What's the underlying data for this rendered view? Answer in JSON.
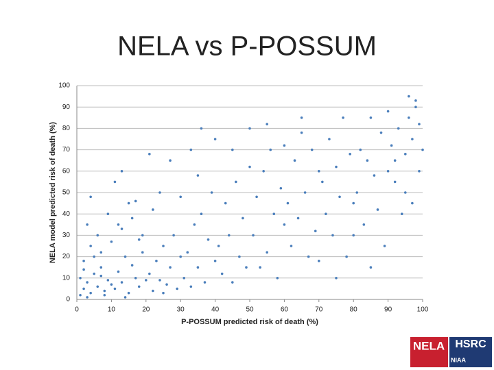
{
  "chart_data": {
    "type": "scatter",
    "title": "NELA vs P-POSSUM",
    "xlabel": "P-POSSUM predicted risk of death (%)",
    "ylabel": "NELA model predicted risk of death (%)",
    "color": "#4a7ebb",
    "grid": true,
    "xlim": [
      0,
      100
    ],
    "ylim": [
      0,
      100
    ],
    "xticks": [
      0,
      10,
      20,
      30,
      40,
      50,
      60,
      70,
      80,
      90,
      100
    ],
    "yticks": [
      0,
      10,
      20,
      30,
      40,
      50,
      60,
      70,
      80,
      90,
      100
    ],
    "x": [
      1,
      2,
      3,
      4,
      5,
      6,
      7,
      8,
      9,
      10,
      2,
      3,
      5,
      7,
      4,
      11,
      12,
      13,
      14,
      15,
      16,
      17,
      18,
      19,
      20,
      6,
      8,
      10,
      12,
      14,
      21,
      22,
      23,
      24,
      25,
      26,
      27,
      28,
      29,
      30,
      3,
      9,
      15,
      18,
      1,
      31,
      32,
      33,
      34,
      35,
      36,
      37,
      38,
      39,
      40,
      4,
      11,
      16,
      22,
      27,
      41,
      42,
      43,
      44,
      45,
      46,
      47,
      48,
      49,
      50,
      13,
      19,
      24,
      33,
      36,
      51,
      52,
      53,
      54,
      55,
      56,
      57,
      58,
      59,
      60,
      2,
      7,
      13,
      17,
      21,
      61,
      62,
      63,
      64,
      65,
      66,
      67,
      68,
      69,
      70,
      25,
      30,
      35,
      40,
      45,
      71,
      72,
      73,
      74,
      75,
      76,
      77,
      78,
      79,
      80,
      50,
      55,
      60,
      65,
      70,
      81,
      82,
      83,
      84,
      85,
      86,
      87,
      88,
      89,
      90,
      75,
      80,
      85,
      90,
      95,
      91,
      92,
      93,
      94,
      95,
      96,
      97,
      98,
      99,
      100,
      92,
      96,
      98,
      99,
      97
    ],
    "y": [
      2,
      5,
      8,
      3,
      12,
      6,
      15,
      4,
      9,
      7,
      18,
      1,
      20,
      11,
      25,
      5,
      13,
      8,
      20,
      3,
      16,
      10,
      6,
      22,
      9,
      30,
      2,
      27,
      35,
      1,
      12,
      4,
      18,
      9,
      25,
      7,
      15,
      30,
      5,
      20,
      35,
      40,
      45,
      28,
      10,
      10,
      22,
      6,
      35,
      15,
      40,
      8,
      28,
      50,
      18,
      48,
      55,
      38,
      42,
      65,
      25,
      12,
      45,
      30,
      8,
      55,
      20,
      38,
      15,
      62,
      60,
      30,
      50,
      70,
      80,
      30,
      48,
      15,
      60,
      22,
      70,
      40,
      10,
      52,
      35,
      14,
      22,
      33,
      46,
      68,
      45,
      25,
      65,
      38,
      78,
      50,
      20,
      70,
      32,
      60,
      3,
      48,
      58,
      75,
      70,
      55,
      40,
      75,
      30,
      62,
      48,
      85,
      20,
      68,
      45,
      80,
      82,
      72,
      85,
      18,
      50,
      70,
      35,
      65,
      85,
      58,
      42,
      78,
      25,
      88,
      10,
      30,
      15,
      60,
      50,
      72,
      55,
      80,
      40,
      68,
      85,
      75,
      90,
      82,
      70,
      65,
      95,
      93,
      60,
      45
    ]
  },
  "logo": {
    "left": "NELA",
    "right": "HSRC",
    "sub": "NIAA"
  }
}
